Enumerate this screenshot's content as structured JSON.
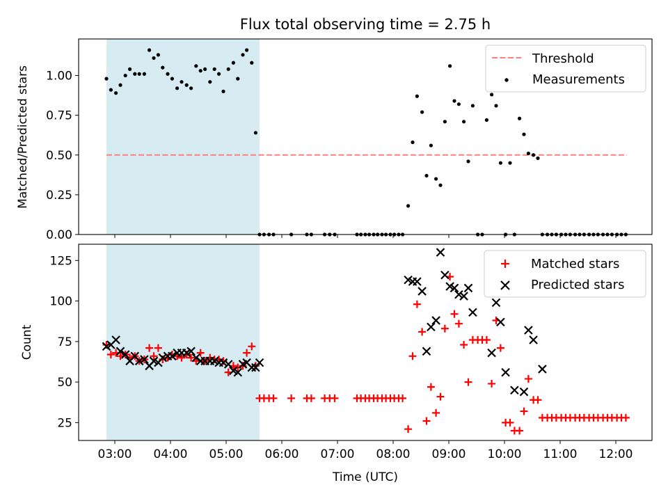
{
  "chart_data": {
    "title": "Flux total observing time = 2.75 h",
    "xlabel": "Time (UTC)",
    "x_unit": "hours UTC",
    "xlim": [
      2.35,
      12.65
    ],
    "x_ticks": [
      {
        "value": 3,
        "label": "03:00"
      },
      {
        "value": 4,
        "label": "04:00"
      },
      {
        "value": 5,
        "label": "05:00"
      },
      {
        "value": 6,
        "label": "06:00"
      },
      {
        "value": 7,
        "label": "07:00"
      },
      {
        "value": 8,
        "label": "08:00"
      },
      {
        "value": 9,
        "label": "09:00"
      },
      {
        "value": 10,
        "label": "10:00"
      },
      {
        "value": 11,
        "label": "11:00"
      },
      {
        "value": 12,
        "label": "12:00"
      }
    ],
    "shaded_interval": {
      "x": [
        2.85,
        5.6
      ],
      "color": "#add8e6"
    },
    "panels": [
      {
        "name": "top",
        "type": "scatter",
        "ylabel": "Matched/Predicted stars",
        "ylim": [
          0,
          1.23
        ],
        "y_ticks": [
          {
            "value": 0,
            "label": "0.00"
          },
          {
            "value": 0.25,
            "label": "0.25"
          },
          {
            "value": 0.5,
            "label": "0.50"
          },
          {
            "value": 0.75,
            "label": "0.75"
          },
          {
            "value": 1.0,
            "label": "1.00"
          }
        ],
        "threshold": {
          "name": "Threshold",
          "value": 0.5,
          "x": [
            2.85,
            12.2
          ],
          "color": "#ff7f7f"
        },
        "measurements": {
          "name": "Measurements",
          "color": "#000000",
          "x": [
            2.85,
            2.93,
            3.02,
            3.1,
            3.19,
            3.27,
            3.36,
            3.44,
            3.53,
            3.62,
            3.7,
            3.78,
            3.86,
            3.95,
            4.03,
            4.12,
            4.2,
            4.29,
            4.37,
            4.46,
            4.54,
            4.62,
            4.71,
            4.79,
            4.87,
            4.95,
            5.04,
            5.13,
            5.21,
            5.3,
            5.37,
            5.46,
            5.53,
            5.6,
            5.68,
            5.77,
            5.85,
            6.17,
            6.45,
            6.53,
            6.77,
            6.86,
            6.95,
            7.35,
            7.42,
            7.5,
            7.57,
            7.65,
            7.72,
            7.8,
            7.87,
            7.95,
            8.02,
            8.1,
            8.17,
            8.27,
            8.35,
            8.43,
            8.52,
            8.6,
            8.68,
            8.77,
            8.85,
            8.93,
            9.02,
            9.1,
            9.18,
            9.27,
            9.35,
            9.43,
            9.52,
            9.6,
            9.68,
            9.77,
            9.85,
            9.93,
            10.02,
            10.1,
            10.18,
            10.27,
            10.35,
            10.43,
            10.52,
            10.6,
            10.68,
            10.77,
            10.85,
            10.93,
            11.02,
            11.1,
            11.18,
            11.27,
            11.35,
            11.43,
            11.52,
            11.6,
            11.68,
            11.77,
            11.85,
            11.93,
            12.02,
            12.1,
            12.18
          ],
          "y": [
            0.98,
            0.91,
            0.89,
            0.94,
            1.0,
            1.04,
            1.01,
            1.01,
            1.01,
            1.16,
            1.11,
            1.13,
            1.05,
            1.01,
            0.98,
            0.92,
            0.96,
            0.94,
            0.92,
            1.06,
            1.03,
            1.04,
            0.96,
            1.04,
            1.01,
            0.9,
            1.04,
            1.08,
            0.98,
            1.13,
            1.16,
            1.08,
            0.64,
            0,
            0,
            0,
            0,
            0,
            0,
            0,
            0,
            0,
            0,
            0,
            0,
            0,
            0,
            0,
            0,
            0,
            0,
            0,
            0,
            0,
            0,
            0.18,
            0.58,
            0.87,
            0.77,
            0.37,
            0.56,
            0.35,
            0.31,
            0.71,
            1.06,
            0.84,
            0.82,
            0.71,
            0.46,
            0.81,
            0,
            0,
            0.72,
            0.88,
            0.81,
            0.45,
            0,
            0.45,
            0,
            0.73,
            0.63,
            0.51,
            0.5,
            0.48,
            0,
            0,
            0,
            0,
            0,
            0,
            0,
            0,
            0,
            0,
            0,
            0,
            0,
            0,
            0,
            0,
            0,
            0,
            0
          ]
        },
        "legend": {
          "placement": "top-right",
          "entries": [
            "Threshold",
            "Measurements"
          ]
        }
      },
      {
        "name": "bottom",
        "type": "scatter",
        "ylabel": "Count",
        "ylim": [
          14,
          135
        ],
        "y_ticks": [
          {
            "value": 25,
            "label": "25"
          },
          {
            "value": 50,
            "label": "50"
          },
          {
            "value": 75,
            "label": "75"
          },
          {
            "value": 100,
            "label": "100"
          },
          {
            "value": 125,
            "label": "125"
          }
        ],
        "series": [
          {
            "name": "Matched stars",
            "marker": "+",
            "color": "#ff0000",
            "x": [
              2.85,
              2.93,
              3.02,
              3.1,
              3.19,
              3.27,
              3.36,
              3.44,
              3.53,
              3.62,
              3.7,
              3.78,
              3.86,
              3.95,
              4.03,
              4.12,
              4.2,
              4.29,
              4.37,
              4.46,
              4.54,
              4.62,
              4.71,
              4.79,
              4.87,
              4.95,
              5.04,
              5.13,
              5.21,
              5.3,
              5.37,
              5.46,
              5.53,
              5.6,
              5.68,
              5.77,
              5.85,
              6.17,
              6.45,
              6.53,
              6.77,
              6.86,
              6.95,
              7.35,
              7.42,
              7.5,
              7.57,
              7.65,
              7.72,
              7.8,
              7.87,
              7.95,
              8.02,
              8.1,
              8.17,
              8.27,
              8.35,
              8.43,
              8.52,
              8.6,
              8.68,
              8.77,
              8.85,
              8.93,
              9.02,
              9.1,
              9.18,
              9.27,
              9.35,
              9.43,
              9.52,
              9.6,
              9.68,
              9.77,
              9.85,
              9.93,
              10.02,
              10.1,
              10.18,
              10.27,
              10.35,
              10.43,
              10.52,
              10.6,
              10.68,
              10.77,
              10.85,
              10.93,
              11.02,
              11.1,
              11.18,
              11.27,
              11.35,
              11.43,
              11.52,
              11.6,
              11.68,
              11.77,
              11.85,
              11.93,
              12.02,
              12.1,
              12.18
            ],
            "y": [
              73,
              67,
              68,
              66,
              67,
              65,
              66,
              63,
              64,
              71,
              66,
              71,
              64,
              65,
              67,
              66,
              65,
              67,
              65,
              63,
              68,
              63,
              65,
              64,
              64,
              63,
              56,
              60,
              59,
              60,
              68,
              72,
              60,
              40,
              40,
              40,
              40,
              40,
              40,
              40,
              40,
              40,
              40,
              40,
              40,
              40,
              40,
              40,
              40,
              40,
              40,
              40,
              40,
              40,
              40,
              21,
              66,
              98,
              81,
              26,
              47,
              31,
              41,
              83,
              115,
              92,
              86,
              73,
              50,
              76,
              76,
              76,
              76,
              49,
              88,
              71,
              25,
              25,
              20,
              20,
              32,
              52,
              39,
              39,
              28,
              28,
              28,
              28,
              28,
              28,
              28,
              28,
              28,
              28,
              28,
              28,
              28,
              28,
              28,
              28,
              28,
              28,
              28
            ]
          },
          {
            "name": "Predicted stars",
            "marker": "x",
            "color": "#000000",
            "x": [
              2.85,
              2.93,
              3.02,
              3.1,
              3.19,
              3.27,
              3.36,
              3.44,
              3.53,
              3.62,
              3.7,
              3.78,
              3.86,
              3.95,
              4.03,
              4.12,
              4.2,
              4.29,
              4.37,
              4.46,
              4.54,
              4.62,
              4.71,
              4.79,
              4.87,
              4.95,
              5.04,
              5.13,
              5.21,
              5.3,
              5.37,
              5.46,
              5.53,
              5.6,
              8.27,
              8.35,
              8.43,
              8.52,
              8.6,
              8.68,
              8.77,
              8.85,
              8.93,
              9.02,
              9.1,
              9.18,
              9.27,
              9.35,
              9.43,
              9.77,
              9.85,
              9.93,
              10.02,
              10.18,
              10.35,
              10.43,
              10.52,
              10.68
            ],
            "y": [
              72,
              73,
              76,
              69,
              67,
              63,
              66,
              63,
              64,
              60,
              63,
              62,
              65,
              66,
              66,
              68,
              68,
              68,
              69,
              65,
              63,
              63,
              63,
              63,
              62,
              62,
              61,
              57,
              56,
              61,
              62,
              59,
              59,
              62,
              113,
              112,
              112,
              106,
              69,
              84,
              88,
              130,
              116,
              109,
              108,
              104,
              103,
              108,
              93,
              68,
              99,
              87,
              56,
              45,
              44,
              82,
              76,
              58
            ]
          }
        ],
        "legend": {
          "placement": "top-right",
          "entries": [
            "Matched stars",
            "Predicted stars"
          ]
        }
      }
    ]
  }
}
